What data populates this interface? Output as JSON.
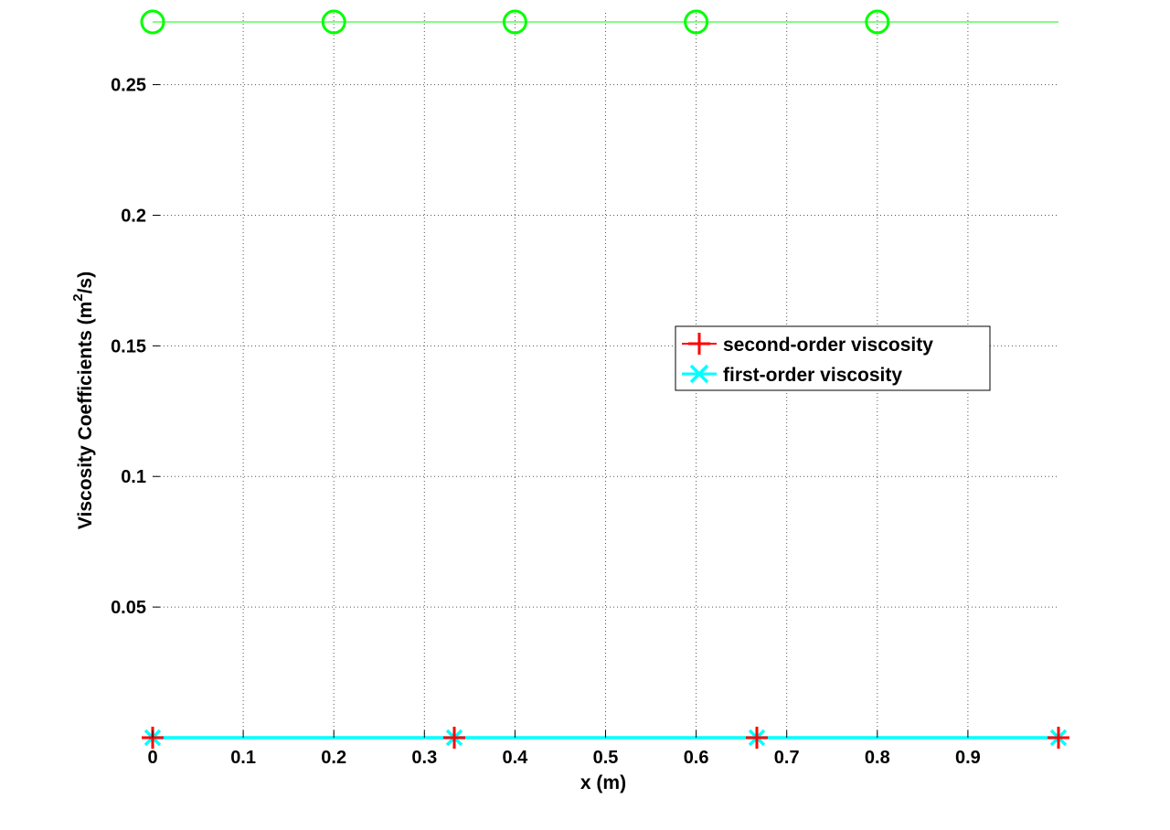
{
  "chart_data": {
    "type": "line",
    "title": "",
    "xlabel": "x (m)",
    "ylabel_main": "Viscosity Coefficients (m",
    "ylabel_sup": "2",
    "ylabel_tail": "/s)",
    "xlim": [
      0,
      1
    ],
    "ylim": [
      0,
      0.2775
    ],
    "xticks": [
      0,
      0.1,
      0.2,
      0.3,
      0.4,
      0.5,
      0.6,
      0.7,
      0.8,
      0.9
    ],
    "xtick_labels": [
      "0",
      "0.1",
      "0.2",
      "0.3",
      "0.4",
      "0.5",
      "0.6",
      "0.7",
      "0.8",
      "0.9"
    ],
    "yticks": [
      0.05,
      0.1,
      0.15,
      0.2,
      0.25
    ],
    "ytick_labels": [
      "0.05",
      "0.1",
      "0.15",
      "0.2",
      "0.25"
    ],
    "grid": true,
    "legend_placement": "center-right",
    "series": [
      {
        "key": "green-line",
        "color": "#00ff00",
        "marker": "circle",
        "line_x": [
          0,
          1
        ],
        "line_y": [
          0.274,
          0.274
        ],
        "marker_x": [
          0,
          0.2,
          0.4,
          0.6,
          0.8
        ],
        "marker_y": [
          0.274,
          0.274,
          0.274,
          0.274,
          0.274
        ]
      },
      {
        "key": "first-order",
        "name": "first-order viscosity",
        "color": "#00ffff",
        "marker": "x",
        "line_x": [
          0,
          1
        ],
        "line_y": [
          0,
          0
        ],
        "marker_x": [
          0,
          0.333,
          0.667,
          1.0
        ],
        "marker_y": [
          0,
          0,
          0,
          0
        ]
      },
      {
        "key": "second-order",
        "name": "second-order viscosity",
        "color": "#ff0000",
        "marker": "plus",
        "line_x": [],
        "line_y": [],
        "marker_x": [
          0,
          0.333,
          0.667,
          1.0
        ],
        "marker_y": [
          0,
          0,
          0,
          0
        ]
      }
    ],
    "legend": [
      {
        "label": "second-order viscosity",
        "color": "#ff0000",
        "marker": "plus"
      },
      {
        "label": "first-order viscosity",
        "color": "#00ffff",
        "marker": "x"
      }
    ]
  }
}
